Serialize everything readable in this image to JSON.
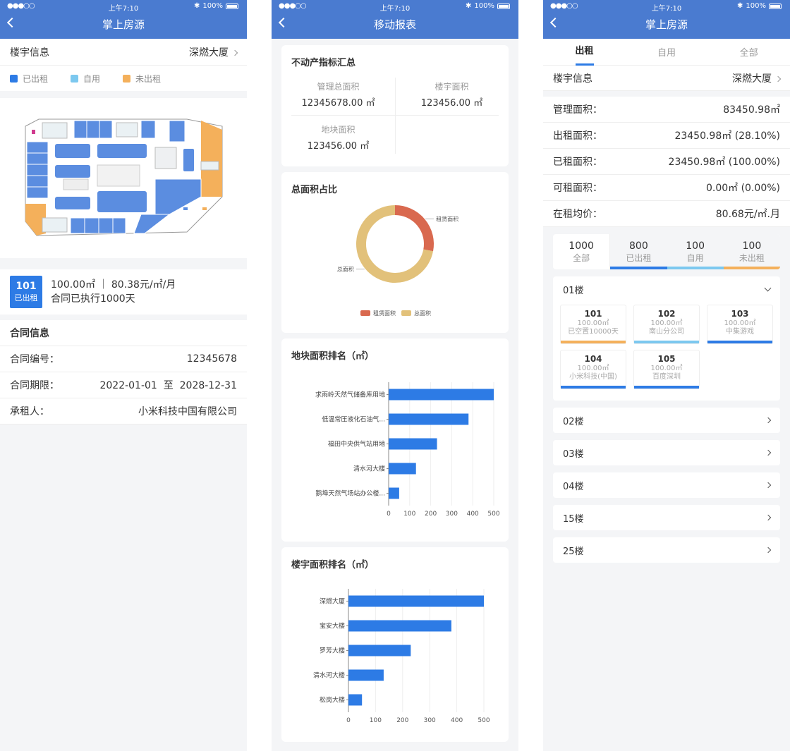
{
  "status": {
    "time": "上午7:10",
    "battery": "100%",
    "signal": "●●●○○"
  },
  "s1": {
    "title": "掌上房源",
    "building_label": "楼宇信息",
    "building_value": "深燃大厦",
    "legend": [
      {
        "label": "已出租",
        "color": "#2d7be5"
      },
      {
        "label": "自用",
        "color": "#7cc8ef"
      },
      {
        "label": "未出租",
        "color": "#f4b05b"
      }
    ],
    "unit": {
      "no": "101",
      "status": "已出租",
      "line1": "100.00㎡ ｜ 80.38元/㎡/月",
      "line2": "合同已执行1000天"
    },
    "contract": {
      "title": "合同信息",
      "rows": [
        {
          "label": "合同编号：",
          "value": "12345678"
        },
        {
          "label": "合同期限：",
          "value": "2022-01-01  至  2028-12-31"
        },
        {
          "label": "承租人：",
          "value": "小米科技中国有限公司"
        }
      ]
    }
  },
  "s2": {
    "title": "移动报表",
    "summary": {
      "title": "不动产指标汇总",
      "items": [
        {
          "label": "管理总面积",
          "value": "12345678.00 ㎡"
        },
        {
          "label": "楼宇面积",
          "value": "123456.00 ㎡"
        },
        {
          "label": "地块面积",
          "value": "123456.00 ㎡"
        }
      ]
    }
  },
  "chart_data": [
    {
      "type": "pie",
      "title": "总面积占比",
      "slices": [
        {
          "name": "租赁面积",
          "value": 28,
          "color": "#d9694f"
        },
        {
          "name": "总面积",
          "value": 72,
          "color": "#e2c17a"
        }
      ]
    },
    {
      "type": "bar",
      "orientation": "horizontal",
      "title": "地块面积排名（㎡）",
      "categories": [
        "求雨岭天然气储备库用地",
        "低温常压液化石油气...",
        "福田中央供气站用地",
        "清水河大楼",
        "鹅埠天然气场站办公楼..."
      ],
      "values": [
        500,
        380,
        230,
        130,
        50
      ],
      "xlim": [
        0,
        500
      ],
      "ticks": [
        0,
        100,
        200,
        300,
        400,
        500
      ],
      "color": "#2d7be5"
    },
    {
      "type": "bar",
      "orientation": "horizontal",
      "title": "楼宇面积排名（㎡）",
      "categories": [
        "深燃大厦",
        "宝安大楼",
        "罗芳大楼",
        "清水河大楼",
        "松岗大楼"
      ],
      "values": [
        500,
        380,
        230,
        130,
        50
      ],
      "xlim": [
        0,
        500
      ],
      "ticks": [
        0,
        100,
        200,
        300,
        400,
        500
      ],
      "color": "#2d7be5"
    }
  ],
  "s3": {
    "title": "掌上房源",
    "tabs": [
      "出租",
      "自用",
      "全部"
    ],
    "building_label": "楼宇信息",
    "building_value": "深燃大厦",
    "stats": [
      {
        "label": "管理面积：",
        "value": "83450.98㎡"
      },
      {
        "label": "出租面积：",
        "value": "23450.98㎡ (28.10%)"
      },
      {
        "label": "已租面积：",
        "value": "23450.98㎡ (100.00%)"
      },
      {
        "label": "可租面积：",
        "value": "0.00㎡ (0.00%)"
      },
      {
        "label": "在租均价：",
        "value": "80.68元/㎡.月"
      }
    ],
    "counts": [
      {
        "num": "1000",
        "label": "全部",
        "color": "#ffffff"
      },
      {
        "num": "800",
        "label": "已出租",
        "color": "#2d7be5"
      },
      {
        "num": "100",
        "label": "自用",
        "color": "#7cc8ef"
      },
      {
        "num": "100",
        "label": "未出租",
        "color": "#f4b05b"
      }
    ],
    "floor_open": "01楼",
    "rooms": [
      {
        "no": "101",
        "area": "100.00㎡",
        "desc": "已空置10000天",
        "color": "#f4b05b"
      },
      {
        "no": "102",
        "area": "100.00㎡",
        "desc": "南山分公司",
        "color": "#7cc8ef"
      },
      {
        "no": "103",
        "area": "100.00㎡",
        "desc": "中集游戏",
        "color": "#2d7be5"
      },
      {
        "no": "104",
        "area": "100.00㎡",
        "desc": "小米科技(中国)",
        "color": "#2d7be5"
      },
      {
        "no": "105",
        "area": "100.00㎡",
        "desc": "百度深圳",
        "color": "#2d7be5"
      }
    ],
    "floors": [
      "02楼",
      "03楼",
      "04楼",
      "15楼",
      "25楼"
    ]
  }
}
